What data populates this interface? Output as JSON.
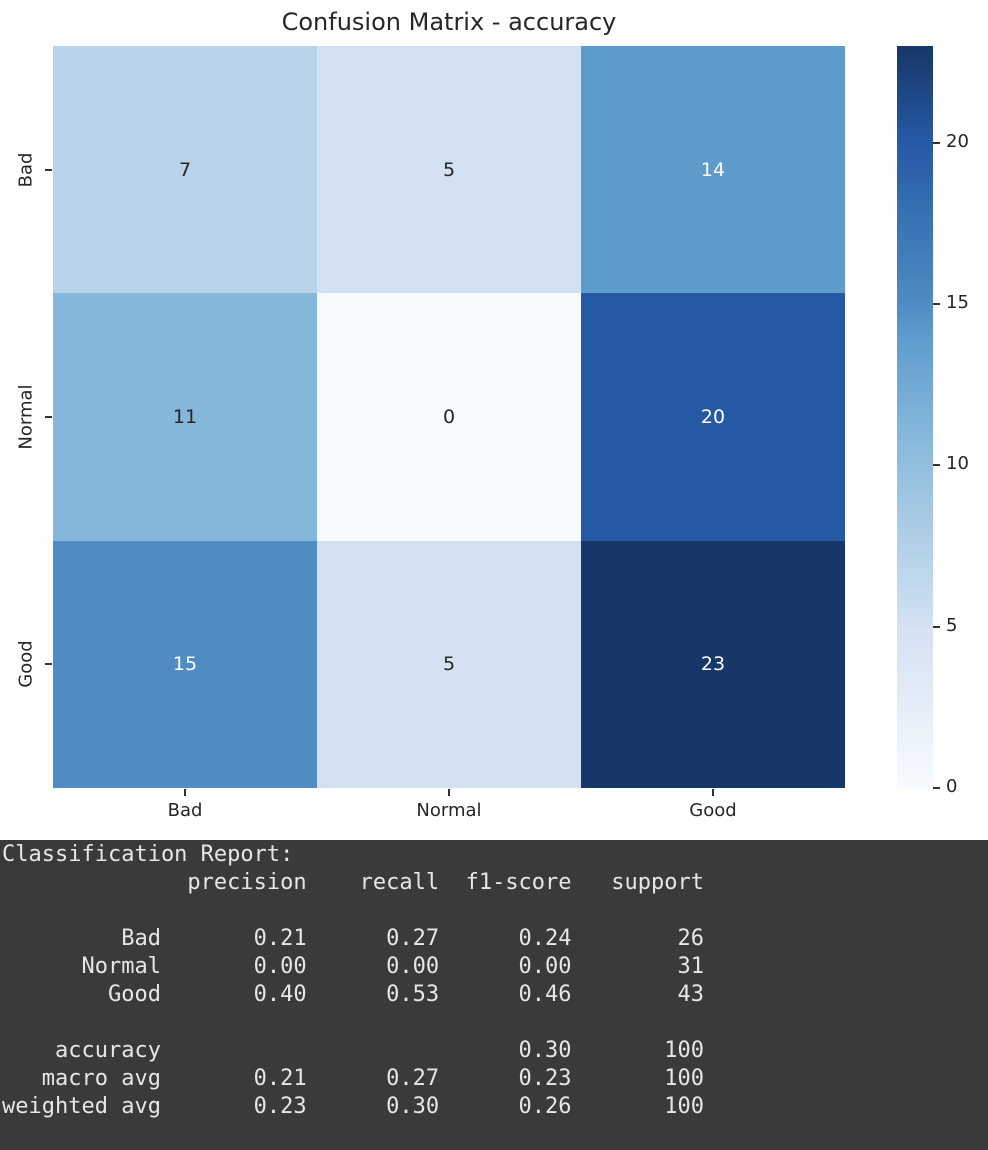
{
  "chart_data": {
    "type": "heatmap",
    "title": "Confusion Matrix - accuracy",
    "colormap": "Blues",
    "x_labels": [
      "Bad",
      "Normal",
      "Good"
    ],
    "y_labels": [
      "Bad",
      "Normal",
      "Good"
    ],
    "matrix": [
      [
        7,
        5,
        14
      ],
      [
        11,
        0,
        20
      ],
      [
        15,
        5,
        23
      ]
    ],
    "cells": [
      {
        "value": "7",
        "bg": "#b9d4ea",
        "fg": "#262626"
      },
      {
        "value": "5",
        "bg": "#d3e1f2",
        "fg": "#262626"
      },
      {
        "value": "14",
        "bg": "#5e9bcd",
        "fg": "#ffffff"
      },
      {
        "value": "11",
        "bg": "#85b7db",
        "fg": "#262626"
      },
      {
        "value": "0",
        "bg": "#f7fbff",
        "fg": "#262626"
      },
      {
        "value": "20",
        "bg": "#2659a5",
        "fg": "#ffffff"
      },
      {
        "value": "15",
        "bg": "#4f8cc3",
        "fg": "#ffffff"
      },
      {
        "value": "5",
        "bg": "#d3e1f2",
        "fg": "#262626"
      },
      {
        "value": "23",
        "bg": "#173768",
        "fg": "#ffffff"
      }
    ],
    "colorbar": {
      "vmin": 0,
      "vmax": 23,
      "ticks": [
        0,
        5,
        10,
        15,
        20
      ],
      "gradient_stops": [
        {
          "pos": 0,
          "color": "#f7fbff"
        },
        {
          "pos": 21.7,
          "color": "#d3e1f2"
        },
        {
          "pos": 30.4,
          "color": "#b9d4ea"
        },
        {
          "pos": 47.8,
          "color": "#85b7db"
        },
        {
          "pos": 60.9,
          "color": "#5e9bcd"
        },
        {
          "pos": 65.2,
          "color": "#4f8cc3"
        },
        {
          "pos": 87,
          "color": "#2659a5"
        },
        {
          "pos": 100,
          "color": "#173768"
        }
      ]
    },
    "legend_position": "right-colorbar",
    "grid": false
  },
  "report": {
    "heading": "Classification Report:",
    "columns": [
      "precision",
      "recall",
      "f1-score",
      "support"
    ],
    "rows": [
      {
        "label": "Bad",
        "precision": "0.21",
        "recall": "0.27",
        "f1_score": "0.24",
        "support": "26"
      },
      {
        "label": "Normal",
        "precision": "0.00",
        "recall": "0.00",
        "f1_score": "0.00",
        "support": "31"
      },
      {
        "label": "Good",
        "precision": "0.40",
        "recall": "0.53",
        "f1_score": "0.46",
        "support": "43"
      },
      {
        "label": "accuracy",
        "precision": "",
        "recall": "",
        "f1_score": "0.30",
        "support": "100"
      },
      {
        "label": "macro avg",
        "precision": "0.21",
        "recall": "0.27",
        "f1_score": "0.23",
        "support": "100"
      },
      {
        "label": "weighted avg",
        "precision": "0.23",
        "recall": "0.30",
        "f1_score": "0.26",
        "support": "100"
      }
    ],
    "text": "Classification Report:\n              precision    recall  f1-score   support\n\n         Bad       0.21      0.27      0.24        26\n      Normal       0.00      0.00      0.00        31\n        Good       0.40      0.53      0.46        43\n\n    accuracy                           0.30       100\n   macro avg       0.21      0.27      0.23       100\nweighted avg       0.23      0.30      0.26       100"
  },
  "colors": {
    "figure_background": "#ffffff",
    "panel_background": "#3a3a3a",
    "panel_text": "#e6e6e6",
    "axis_text": "#262626",
    "annot_dark": "#262626",
    "annot_light": "#ffffff"
  }
}
